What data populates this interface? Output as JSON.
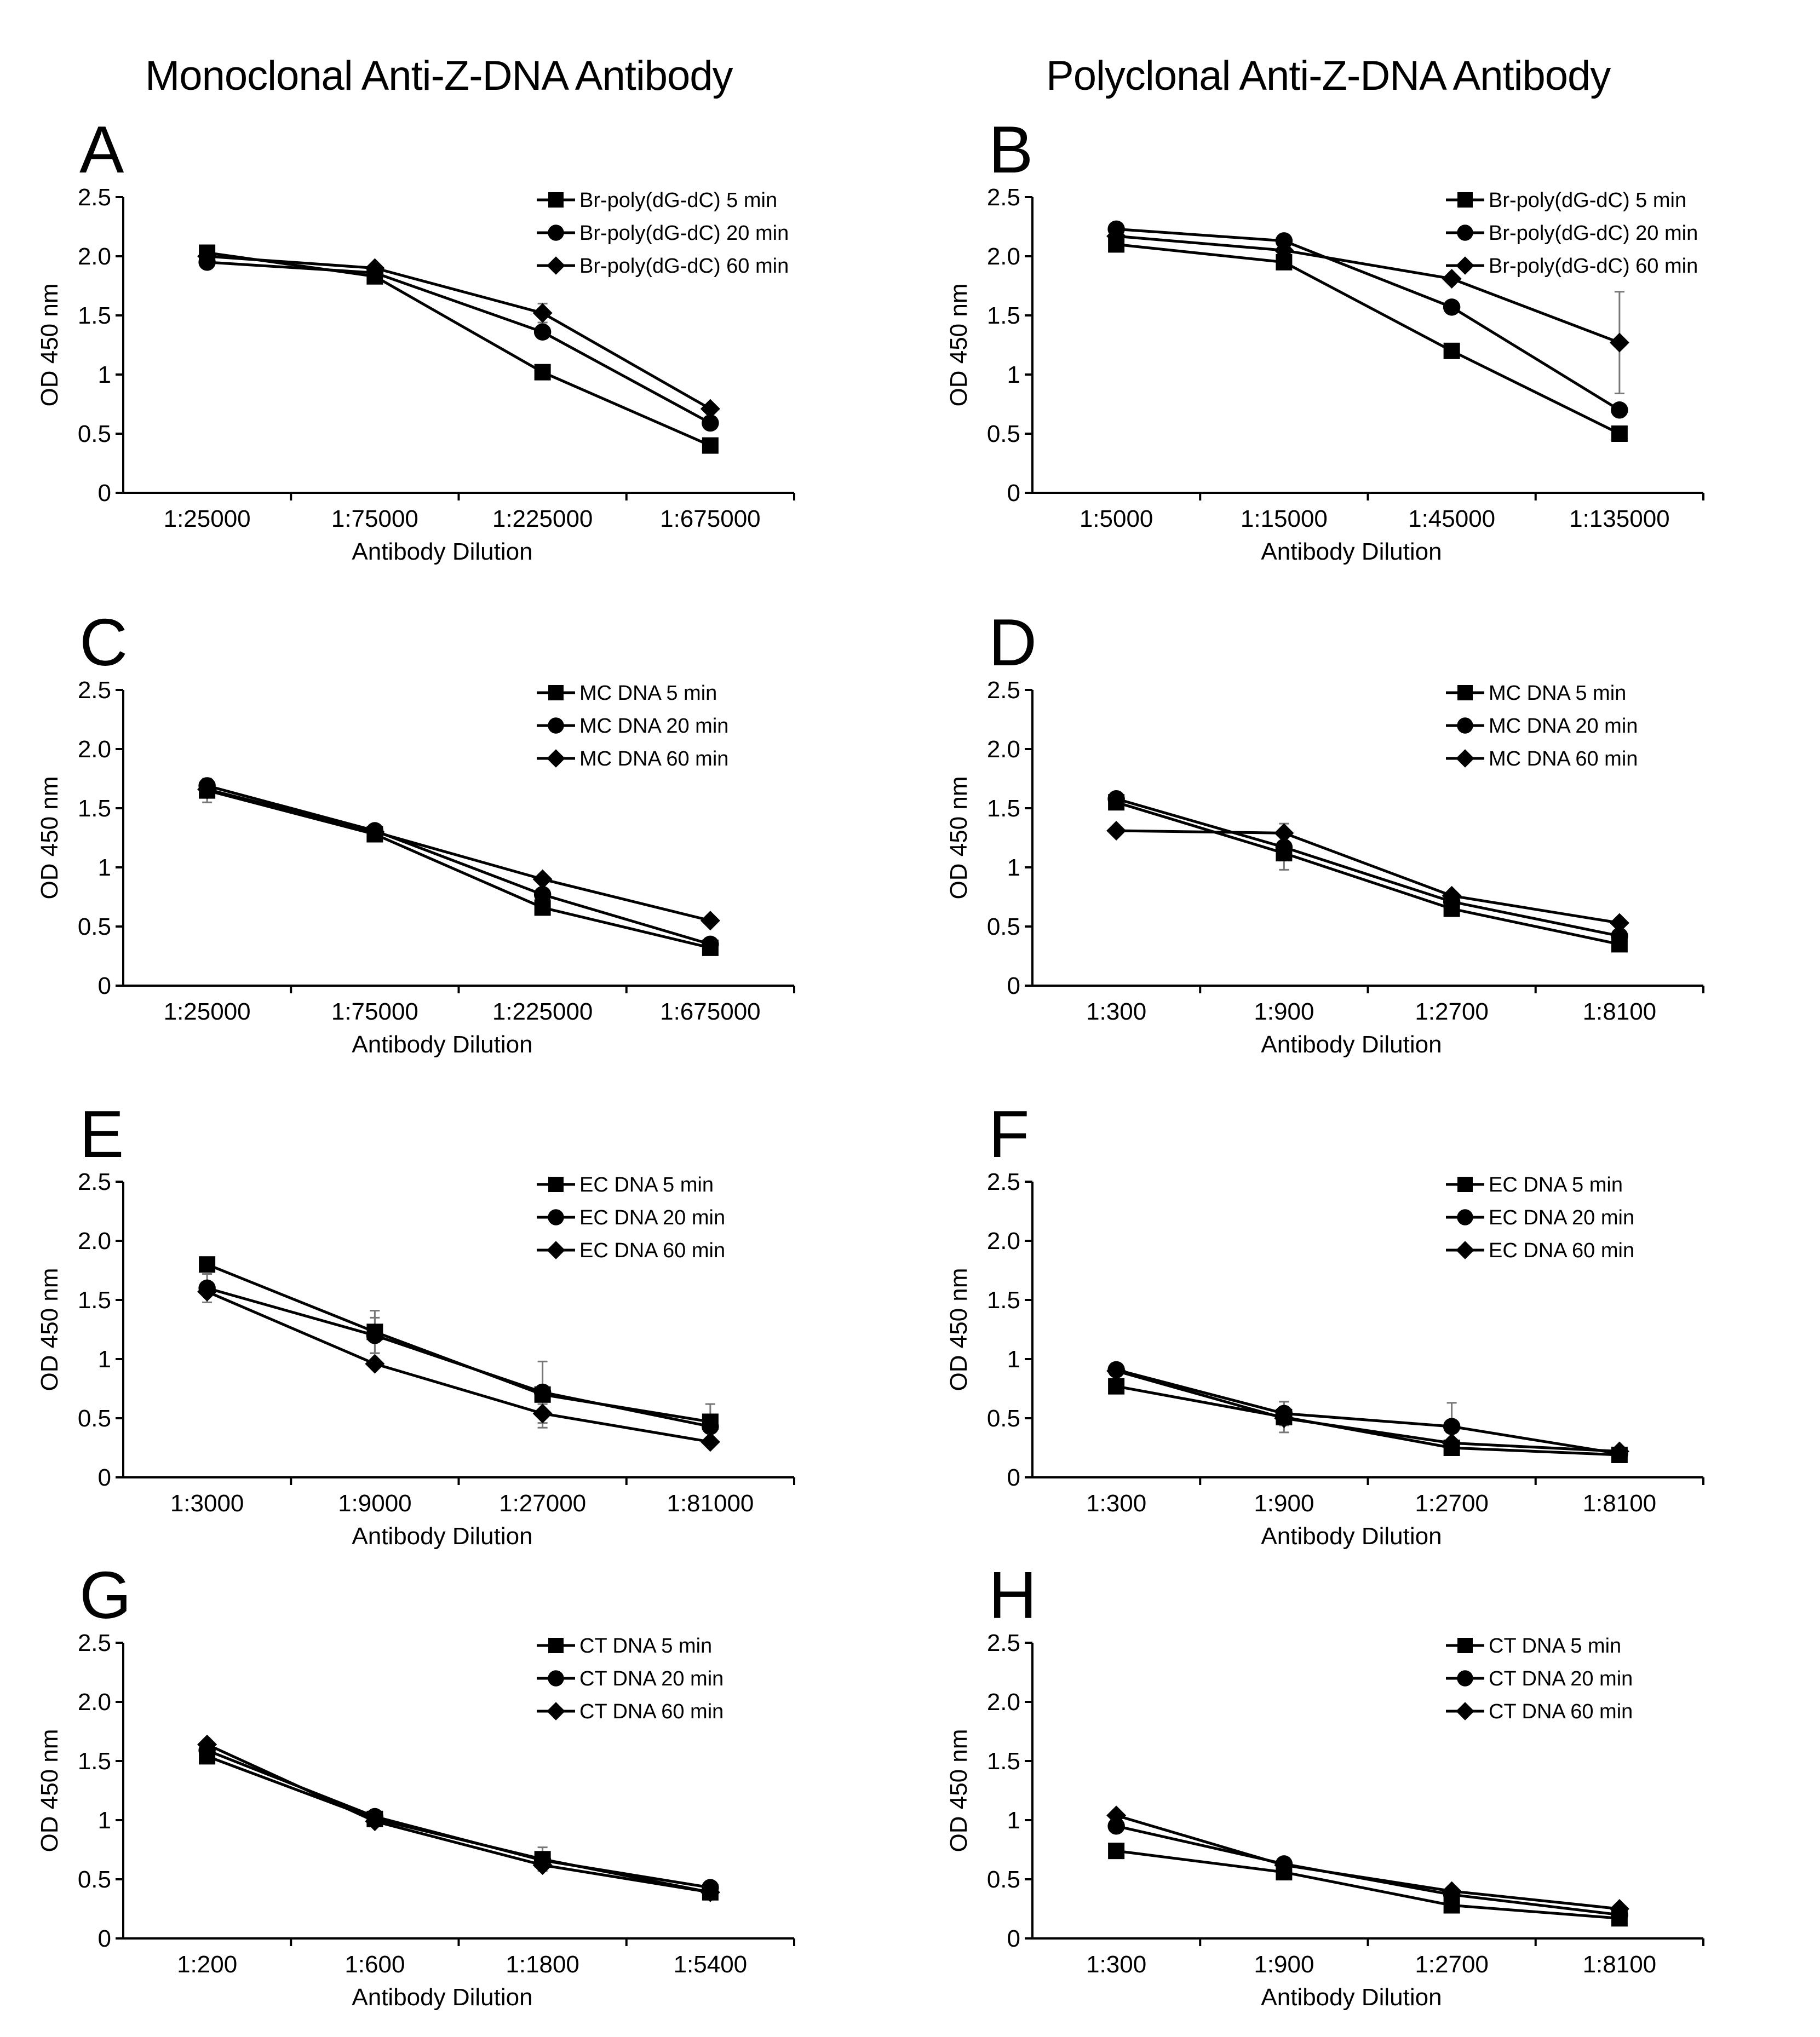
{
  "headers": {
    "left": "Monoclonal Anti-Z-DNA Antibody",
    "right": "Polyclonal Anti-Z-DNA Antibody"
  },
  "colors": {
    "ink": "#000000",
    "error_bar": "#777777"
  },
  "chart_data": [
    {
      "panel": "A",
      "type": "line",
      "categories": [
        "1:25000",
        "1:75000",
        "1:225000",
        "1:675000"
      ],
      "xlabel": "Antibody Dilution",
      "ylabel": "OD 450 nm",
      "ylim": [
        0,
        2.5
      ],
      "yticks": [
        "0",
        "0.5",
        "1",
        "1.5",
        "2.0",
        "2.5"
      ],
      "legend_position": "top-right",
      "series": [
        {
          "name": "Br-poly(dG-dC) 5 min",
          "marker": "square",
          "values": [
            2.03,
            1.83,
            1.02,
            0.4
          ],
          "errors": [
            0,
            0,
            0,
            0
          ]
        },
        {
          "name": "Br-poly(dG-dC) 20 min",
          "marker": "circle",
          "values": [
            1.95,
            1.86,
            1.36,
            0.59
          ],
          "errors": [
            0,
            0,
            0,
            0
          ]
        },
        {
          "name": "Br-poly(dG-dC)  60 min",
          "marker": "diamond",
          "values": [
            2.0,
            1.9,
            1.52,
            0.71
          ],
          "errors": [
            0,
            0,
            0.08,
            0
          ]
        }
      ]
    },
    {
      "panel": "B",
      "type": "line",
      "categories": [
        "1:5000",
        "1:15000",
        "1:45000",
        "1:135000"
      ],
      "xlabel": "Antibody Dilution",
      "ylabel": "OD 450 nm",
      "ylim": [
        0,
        2.5
      ],
      "yticks": [
        "0",
        "0.5",
        "1",
        "1.5",
        "2.0",
        "2.5"
      ],
      "legend_position": "top-right",
      "series": [
        {
          "name": "Br-poly(dG-dC) 5 min",
          "marker": "square",
          "values": [
            2.1,
            1.95,
            1.2,
            0.5
          ],
          "errors": [
            0,
            0,
            0,
            0
          ]
        },
        {
          "name": "Br-poly(dG-dC) 20 min",
          "marker": "circle",
          "values": [
            2.23,
            2.13,
            1.57,
            0.7
          ],
          "errors": [
            0,
            0,
            0,
            0
          ]
        },
        {
          "name": "Br-poly(dG-dC) 60 min",
          "marker": "diamond",
          "values": [
            2.17,
            2.05,
            1.81,
            1.27
          ],
          "errors": [
            0,
            0,
            0,
            0.43
          ]
        }
      ]
    },
    {
      "panel": "C",
      "type": "line",
      "categories": [
        "1:25000",
        "1:75000",
        "1:225000",
        "1:675000"
      ],
      "xlabel": "Antibody Dilution",
      "ylabel": "OD 450 nm",
      "ylim": [
        0,
        2.5
      ],
      "yticks": [
        "0",
        "0.5",
        "1",
        "1.5",
        "2.0",
        "2.5"
      ],
      "legend_position": "top-right",
      "series": [
        {
          "name": "MC DNA 5 min",
          "marker": "square",
          "values": [
            1.65,
            1.28,
            0.66,
            0.32
          ],
          "errors": [
            0.1,
            0,
            0,
            0
          ]
        },
        {
          "name": "MC DNA 20 min",
          "marker": "circle",
          "values": [
            1.69,
            1.31,
            0.77,
            0.35
          ],
          "errors": [
            0,
            0,
            0,
            0
          ]
        },
        {
          "name": "MC DNA 60 min",
          "marker": "diamond",
          "values": [
            1.66,
            1.3,
            0.9,
            0.55
          ],
          "errors": [
            0,
            0,
            0,
            0
          ]
        }
      ]
    },
    {
      "panel": "D",
      "type": "line",
      "categories": [
        "1:300",
        "1:900",
        "1:2700",
        "1:8100"
      ],
      "xlabel": "Antibody Dilution",
      "ylabel": "OD 450 nm",
      "ylim": [
        0,
        2.5
      ],
      "yticks": [
        "0",
        "0.5",
        "1",
        "1.5",
        "2.0",
        "2.5"
      ],
      "legend_position": "top-right",
      "series": [
        {
          "name": "MC DNA 5 min",
          "marker": "square",
          "values": [
            1.55,
            1.12,
            0.65,
            0.35
          ],
          "errors": [
            0,
            0.14,
            0,
            0
          ]
        },
        {
          "name": "MC DNA 20 min",
          "marker": "circle",
          "values": [
            1.58,
            1.17,
            0.71,
            0.42
          ],
          "errors": [
            0,
            0,
            0,
            0
          ]
        },
        {
          "name": "MC DNA 60 min",
          "marker": "diamond",
          "values": [
            1.31,
            1.29,
            0.76,
            0.53
          ],
          "errors": [
            0,
            0.08,
            0,
            0
          ]
        }
      ]
    },
    {
      "panel": "E",
      "type": "line",
      "categories": [
        "1:3000",
        "1:9000",
        "1:27000",
        "1:81000"
      ],
      "xlabel": "Antibody Dilution",
      "ylabel": "OD 450 nm",
      "ylim": [
        0,
        2.5
      ],
      "yticks": [
        "0",
        "0.5",
        "1",
        "1.5",
        "2.0",
        "2.5"
      ],
      "legend_position": "top-right",
      "series": [
        {
          "name": "EC DNA 5 min",
          "marker": "square",
          "values": [
            1.8,
            1.23,
            0.7,
            0.47
          ],
          "errors": [
            0,
            0.18,
            0.28,
            0.15
          ]
        },
        {
          "name": "EC DNA 20 min",
          "marker": "circle",
          "values": [
            1.6,
            1.2,
            0.72,
            0.43
          ],
          "errors": [
            0.12,
            0.15,
            0,
            0
          ]
        },
        {
          "name": "EC DNA 60 min",
          "marker": "diamond",
          "values": [
            1.57,
            0.96,
            0.54,
            0.3
          ],
          "errors": [
            0,
            0,
            0.08,
            0
          ]
        }
      ]
    },
    {
      "panel": "F",
      "type": "line",
      "categories": [
        "1:300",
        "1:900",
        "1:2700",
        "1:8100"
      ],
      "xlabel": "Antibody Dilution",
      "ylabel": "OD 450 nm",
      "ylim": [
        0,
        2.5
      ],
      "yticks": [
        "0",
        "0.5",
        "1",
        "1.5",
        "2.0",
        "2.5"
      ],
      "legend_position": "top-right",
      "series": [
        {
          "name": "EC DNA 5 min",
          "marker": "square",
          "values": [
            0.77,
            0.51,
            0.25,
            0.19
          ],
          "errors": [
            0,
            0.13,
            0,
            0
          ]
        },
        {
          "name": "EC DNA 20 min",
          "marker": "circle",
          "values": [
            0.91,
            0.54,
            0.43,
            0.2
          ],
          "errors": [
            0,
            0.1,
            0.2,
            0
          ]
        },
        {
          "name": "EC DNA 60 min",
          "marker": "diamond",
          "values": [
            0.9,
            0.5,
            0.29,
            0.22
          ],
          "errors": [
            0,
            0,
            0,
            0
          ]
        }
      ]
    },
    {
      "panel": "G",
      "type": "line",
      "categories": [
        "1:200",
        "1:600",
        "1:1800",
        "1:5400"
      ],
      "xlabel": "Antibody Dilution",
      "ylabel": "OD 450 nm",
      "ylim": [
        0,
        2.5
      ],
      "yticks": [
        "0",
        "0.5",
        "1",
        "1.5",
        "2.0",
        "2.5"
      ],
      "legend_position": "top-right",
      "series": [
        {
          "name": "CT DNA 5 min",
          "marker": "square",
          "values": [
            1.54,
            1.01,
            0.67,
            0.39
          ],
          "errors": [
            0.06,
            0,
            0.1,
            0
          ]
        },
        {
          "name": "CT DNA 20 min",
          "marker": "circle",
          "values": [
            1.59,
            1.03,
            0.66,
            0.43
          ],
          "errors": [
            0,
            0,
            0,
            0
          ]
        },
        {
          "name": "CT DNA 60 min",
          "marker": "diamond",
          "values": [
            1.64,
            0.99,
            0.62,
            0.39
          ],
          "errors": [
            0,
            0,
            0,
            0
          ]
        }
      ]
    },
    {
      "panel": "H",
      "type": "line",
      "categories": [
        "1:300",
        "1:900",
        "1:2700",
        "1:8100"
      ],
      "xlabel": "Antibody Dilution",
      "ylabel": "OD 450 nm",
      "ylim": [
        0,
        2.5
      ],
      "yticks": [
        "0",
        "0.5",
        "1",
        "1.5",
        "2.0",
        "2.5"
      ],
      "legend_position": "top-right",
      "series": [
        {
          "name": "CT DNA 5 min",
          "marker": "square",
          "values": [
            0.74,
            0.56,
            0.28,
            0.17
          ],
          "errors": [
            0,
            0,
            0,
            0
          ]
        },
        {
          "name": "CT DNA 20 min",
          "marker": "circle",
          "values": [
            0.95,
            0.63,
            0.37,
            0.2
          ],
          "errors": [
            0,
            0,
            0,
            0
          ]
        },
        {
          "name": "CT DNA 60 min",
          "marker": "diamond",
          "values": [
            1.04,
            0.62,
            0.4,
            0.25
          ],
          "errors": [
            0,
            0,
            0,
            0
          ]
        }
      ]
    }
  ]
}
